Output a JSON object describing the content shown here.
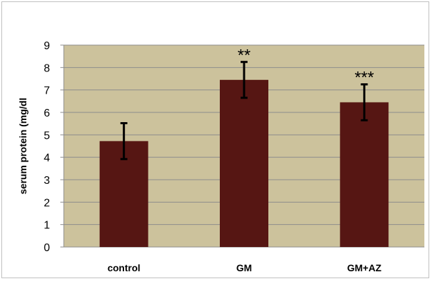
{
  "chart_data": {
    "type": "bar",
    "categories": [
      "control",
      "GM",
      "GM+AZ"
    ],
    "values": [
      4.72,
      7.45,
      6.45
    ],
    "error": [
      0.8,
      0.8,
      0.8
    ],
    "annotations": [
      "",
      "**",
      "***"
    ],
    "ylabel": "serum protein  (mg/dl",
    "xlabel": "",
    "ylim": [
      0,
      9
    ],
    "yticks": [
      "0",
      "1",
      "2",
      "3",
      "4",
      "5",
      "6",
      "7",
      "8",
      "9"
    ],
    "grid": true,
    "colors": {
      "bar": "#561613",
      "plot_bg": "#ccc29c",
      "grid": "#8c8c8c",
      "error": "#000000"
    }
  }
}
